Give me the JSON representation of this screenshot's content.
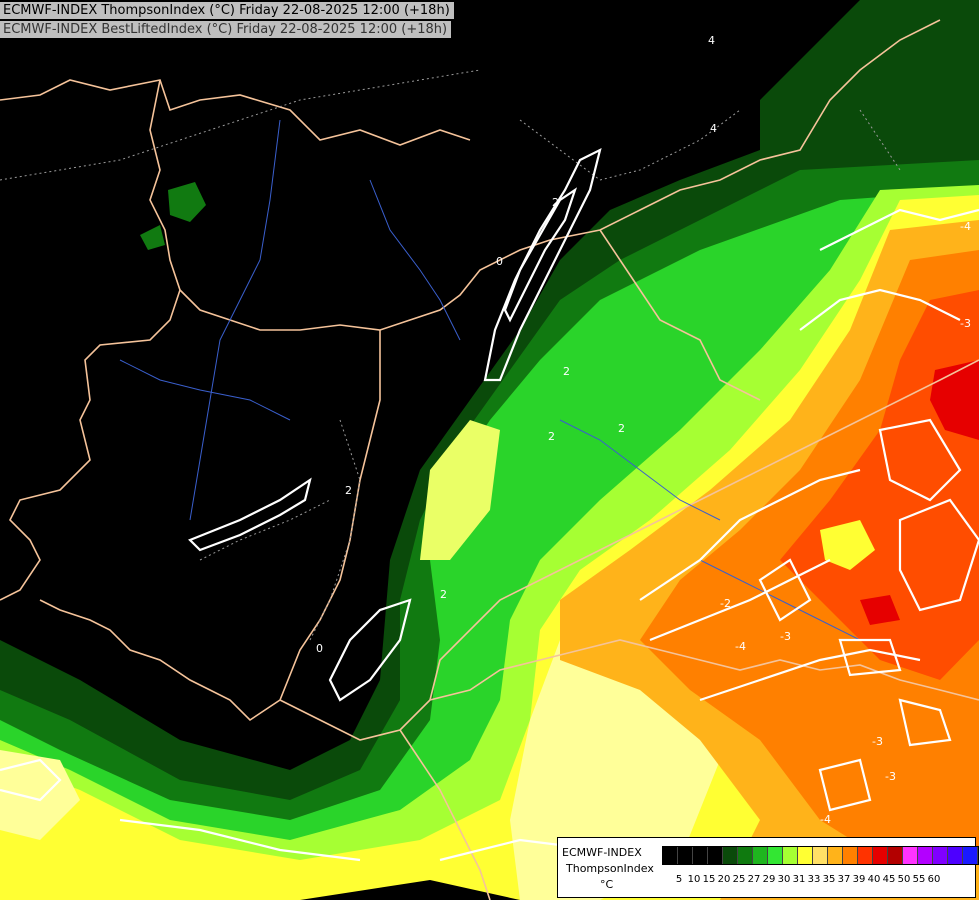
{
  "titles": {
    "line1": "ECMWF-INDEX ThompsonIndex (°C) Friday 22-08-2025 12:00 (+18h)",
    "line2": "ECMWF-INDEX BestLiftedIndex (°C) Friday 22-08-2025 12:00 (+18h)"
  },
  "legend": {
    "model": "ECMWF-INDEX",
    "parameter": "ThompsonIndex",
    "unit": "°C",
    "ticks": [
      "5",
      "10",
      "15",
      "20",
      "25",
      "27",
      "29",
      "30",
      "31",
      "33",
      "35",
      "37",
      "39",
      "40",
      "45",
      "50",
      "55",
      "60"
    ],
    "colors": [
      "#000000",
      "#000000",
      "#000000",
      "#000000",
      "#0a4a0a",
      "#0f7a0f",
      "#1fb51f",
      "#33e633",
      "#a6ff33",
      "#ffff33",
      "#ffe066",
      "#ffb31a",
      "#ff8000",
      "#ff3300",
      "#e60000",
      "#b30000",
      "#ff33ff",
      "#b300ff",
      "#8000ff",
      "#4d00ff",
      "#1a1aff"
    ]
  },
  "contour_labels": [
    "2",
    "2",
    "2",
    "2",
    "0",
    "0",
    "-2",
    "-3",
    "-3",
    "-3",
    "-3",
    "-4",
    "-4",
    "-4",
    "4",
    "4",
    "2",
    "2"
  ],
  "colors": {
    "background": "#000000",
    "dark_green": "#0a4a0a",
    "green": "#0f7a0f",
    "bright_green": "#33e633",
    "lime": "#a6ff33",
    "yellow": "#ffff33",
    "pale_yellow": "#ffff99",
    "orange": "#ffb31a",
    "dark_orange": "#ff8000",
    "red_orange": "#ff4d00",
    "red": "#e60000",
    "border": "#f5c39a",
    "river": "#3a5fcd"
  }
}
